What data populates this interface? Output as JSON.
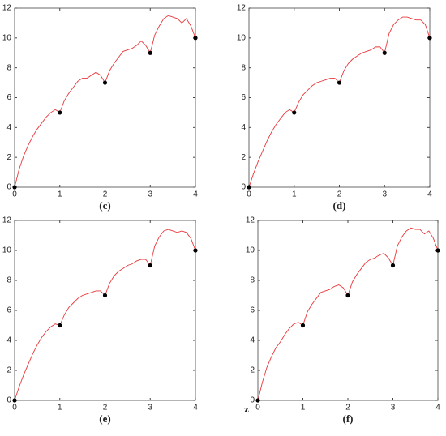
{
  "chart_data": [
    {
      "type": "line",
      "caption": "(c)",
      "x": [
        0,
        0.1,
        0.2,
        0.3,
        0.4,
        0.5,
        0.6,
        0.7,
        0.8,
        0.9,
        1,
        1.1,
        1.2,
        1.3,
        1.4,
        1.5,
        1.6,
        1.7,
        1.8,
        1.9,
        2,
        2.1,
        2.2,
        2.3,
        2.4,
        2.5,
        2.6,
        2.7,
        2.8,
        2.9,
        3,
        3.1,
        3.2,
        3.3,
        3.4,
        3.5,
        3.6,
        3.7,
        3.8,
        3.9,
        4
      ],
      "series": [
        {
          "color": "#e8383b",
          "values": [
            0,
            1.2,
            2.1,
            2.8,
            3.4,
            3.9,
            4.3,
            4.7,
            5.0,
            5.2,
            5,
            5.8,
            6.3,
            6.7,
            7.1,
            7.3,
            7.3,
            7.5,
            7.7,
            7.5,
            7,
            7.8,
            8.3,
            8.7,
            9.1,
            9.2,
            9.3,
            9.5,
            9.8,
            9.5,
            9,
            10.2,
            10.8,
            11.3,
            11.5,
            11.4,
            11.3,
            11.0,
            11.3,
            10.8,
            10
          ]
        }
      ],
      "points": {
        "color": "#000000",
        "x": [
          0,
          1,
          2,
          3,
          4
        ],
        "values": [
          0,
          5,
          7,
          9,
          10
        ]
      },
      "xlim": [
        0,
        4
      ],
      "ylim": [
        0,
        12
      ],
      "xticks": [
        0,
        1,
        2,
        3,
        4
      ],
      "yticks": [
        0,
        2,
        4,
        6,
        8,
        10,
        12
      ]
    },
    {
      "type": "line",
      "caption": "(d)",
      "x": [
        0,
        0.1,
        0.2,
        0.3,
        0.4,
        0.5,
        0.6,
        0.7,
        0.8,
        0.9,
        1,
        1.1,
        1.2,
        1.3,
        1.4,
        1.5,
        1.6,
        1.7,
        1.8,
        1.9,
        2,
        2.1,
        2.2,
        2.3,
        2.4,
        2.5,
        2.6,
        2.7,
        2.8,
        2.9,
        3,
        3.1,
        3.2,
        3.3,
        3.4,
        3.5,
        3.6,
        3.7,
        3.8,
        3.9,
        4
      ],
      "series": [
        {
          "color": "#e8383b",
          "values": [
            0,
            0.9,
            1.7,
            2.4,
            3.1,
            3.7,
            4.2,
            4.6,
            5.0,
            5.2,
            5,
            5.7,
            6.2,
            6.5,
            6.8,
            7.0,
            7.1,
            7.2,
            7.3,
            7.3,
            7,
            7.8,
            8.3,
            8.6,
            8.8,
            9.0,
            9.1,
            9.2,
            9.4,
            9.4,
            9,
            10.3,
            10.9,
            11.2,
            11.4,
            11.4,
            11.3,
            11.2,
            11.2,
            10.9,
            10
          ]
        }
      ],
      "points": {
        "color": "#000000",
        "x": [
          0,
          1,
          2,
          3,
          4
        ],
        "values": [
          0,
          5,
          7,
          9,
          10
        ]
      },
      "xlim": [
        0,
        4
      ],
      "ylim": [
        0,
        12
      ],
      "xticks": [
        0,
        1,
        2,
        3,
        4
      ],
      "yticks": [
        0,
        2,
        4,
        6,
        8,
        10,
        12
      ]
    },
    {
      "type": "line",
      "caption": "(e)",
      "x": [
        0,
        0.1,
        0.2,
        0.3,
        0.4,
        0.5,
        0.6,
        0.7,
        0.8,
        0.9,
        1,
        1.1,
        1.2,
        1.3,
        1.4,
        1.5,
        1.6,
        1.7,
        1.8,
        1.9,
        2,
        2.1,
        2.2,
        2.3,
        2.4,
        2.5,
        2.6,
        2.7,
        2.8,
        2.9,
        3,
        3.1,
        3.2,
        3.3,
        3.4,
        3.5,
        3.6,
        3.7,
        3.8,
        3.9,
        4
      ],
      "series": [
        {
          "color": "#e8383b",
          "values": [
            0,
            0.9,
            1.7,
            2.4,
            3.1,
            3.7,
            4.2,
            4.6,
            4.9,
            5.1,
            5,
            5.7,
            6.2,
            6.5,
            6.8,
            7.0,
            7.1,
            7.2,
            7.3,
            7.3,
            7,
            7.8,
            8.3,
            8.6,
            8.8,
            9.0,
            9.1,
            9.3,
            9.4,
            9.4,
            9,
            10.3,
            10.9,
            11.3,
            11.4,
            11.3,
            11.2,
            11.3,
            11.2,
            10.8,
            10
          ]
        }
      ],
      "points": {
        "color": "#000000",
        "x": [
          0,
          1,
          2,
          3,
          4
        ],
        "values": [
          0,
          5,
          7,
          9,
          10
        ]
      },
      "xlim": [
        0,
        4
      ],
      "ylim": [
        0,
        12
      ],
      "xticks": [
        0,
        1,
        2,
        3,
        4
      ],
      "yticks": [
        0,
        2,
        4,
        6,
        8,
        10,
        12
      ]
    },
    {
      "type": "line",
      "caption": "(f)",
      "annotation": "z",
      "x": [
        0,
        0.1,
        0.2,
        0.3,
        0.4,
        0.5,
        0.6,
        0.7,
        0.8,
        0.9,
        1,
        1.1,
        1.2,
        1.3,
        1.4,
        1.5,
        1.6,
        1.7,
        1.8,
        1.9,
        2,
        2.1,
        2.2,
        2.3,
        2.4,
        2.5,
        2.6,
        2.7,
        2.8,
        2.9,
        3,
        3.1,
        3.2,
        3.3,
        3.4,
        3.5,
        3.6,
        3.7,
        3.8,
        3.9,
        4
      ],
      "series": [
        {
          "color": "#e8383b",
          "values": [
            0,
            1.2,
            2.2,
            2.9,
            3.5,
            3.9,
            4.4,
            4.8,
            5.1,
            5.2,
            5,
            5.9,
            6.4,
            6.8,
            7.2,
            7.3,
            7.4,
            7.6,
            7.7,
            7.5,
            7,
            7.9,
            8.4,
            8.8,
            9.2,
            9.4,
            9.5,
            9.7,
            9.8,
            9.5,
            9,
            10.3,
            10.9,
            11.3,
            11.5,
            11.4,
            11.4,
            11.1,
            11.3,
            10.8,
            10
          ]
        }
      ],
      "points": {
        "color": "#000000",
        "x": [
          0,
          1,
          2,
          3,
          4
        ],
        "values": [
          0,
          5,
          7,
          9,
          10
        ]
      },
      "xlim": [
        0,
        4
      ],
      "ylim": [
        0,
        12
      ],
      "xticks": [
        0,
        1,
        2,
        3,
        4
      ],
      "yticks": [
        0,
        2,
        4,
        6,
        8,
        10,
        12
      ]
    }
  ]
}
